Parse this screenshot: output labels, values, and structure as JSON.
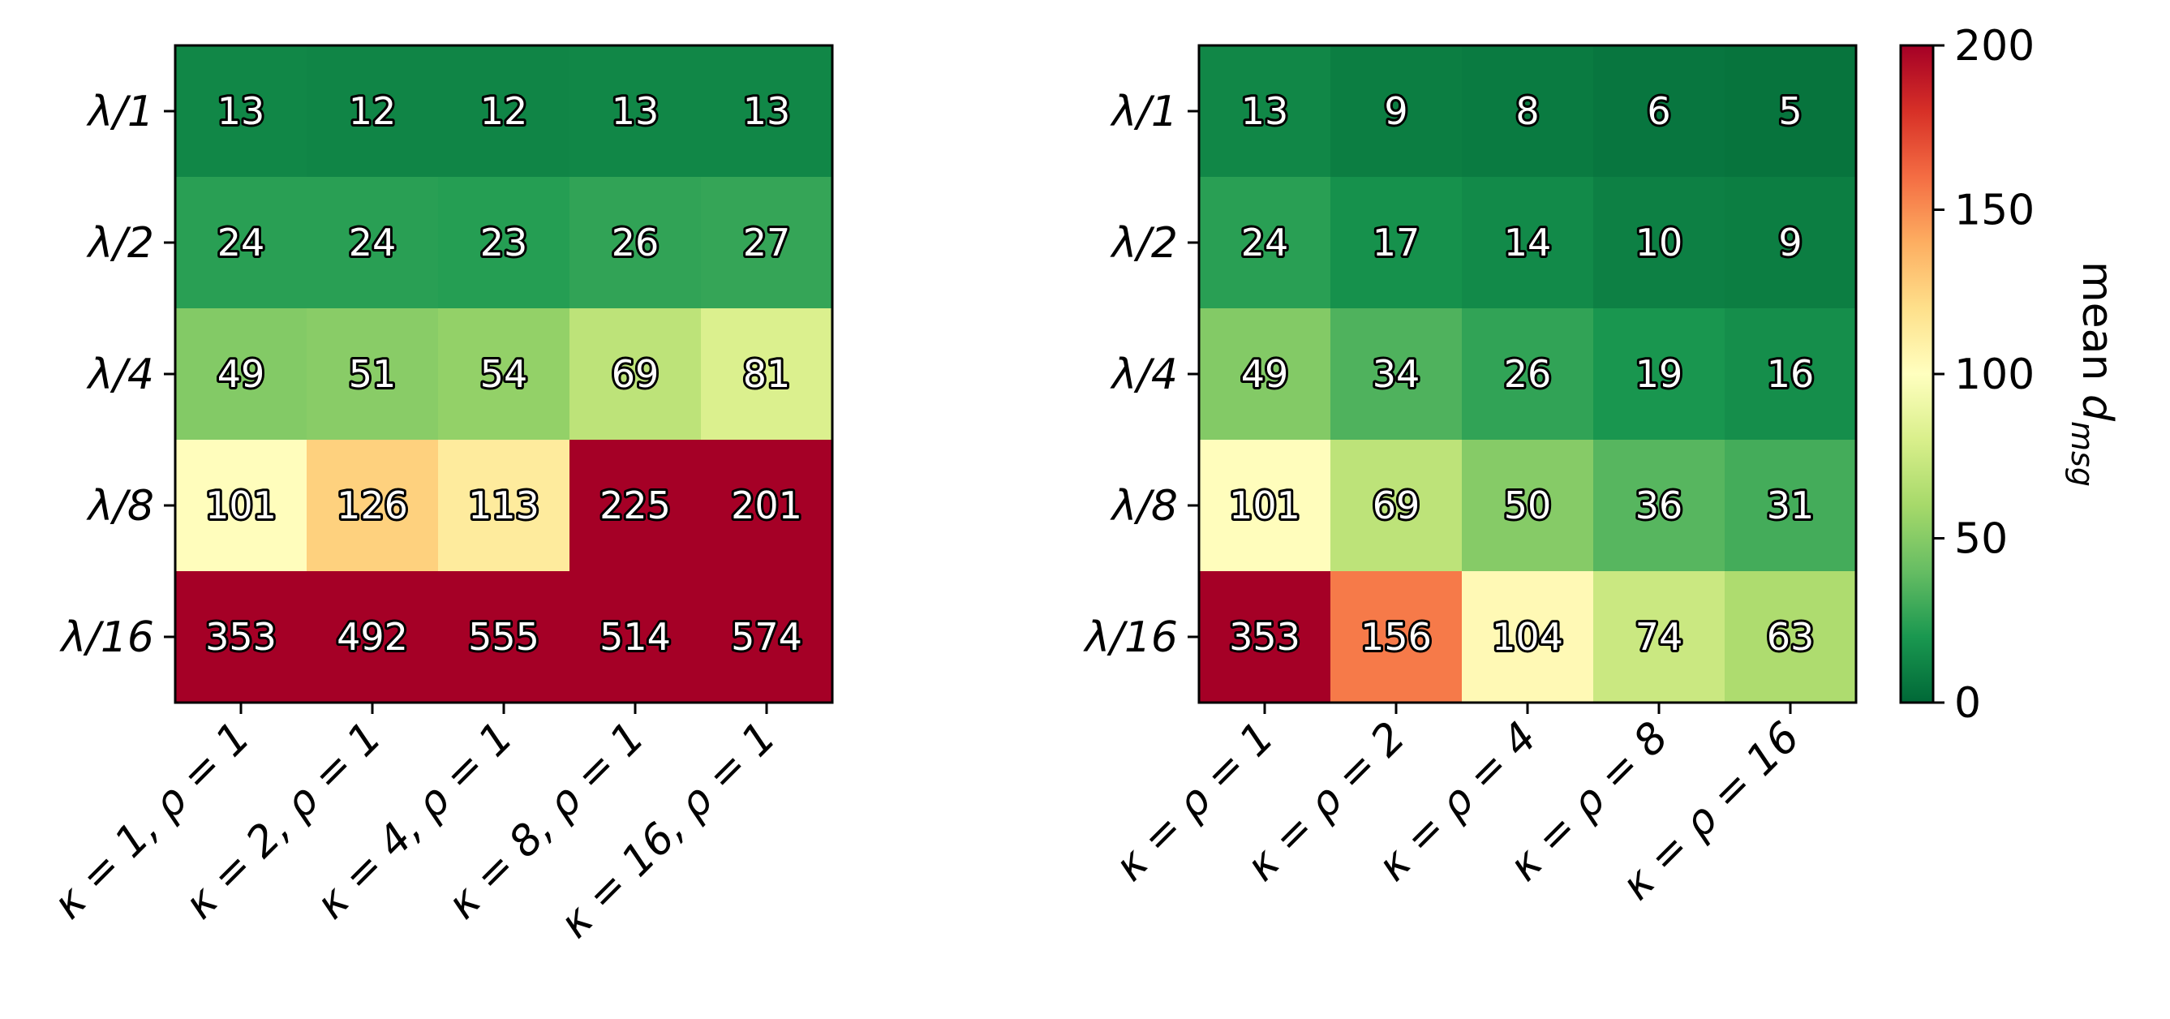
{
  "chart_data": [
    {
      "type": "heatmap",
      "title": "",
      "xlabel": "",
      "ylabel": "",
      "rows": [
        "λ/1",
        "λ/2",
        "λ/4",
        "λ/8",
        "λ/16"
      ],
      "cols": [
        "κ = 1, ρ = 1",
        "κ = 2, ρ = 1",
        "κ = 4, ρ = 1",
        "κ = 8, ρ = 1",
        "κ = 16, ρ = 1"
      ],
      "values": [
        [
          13,
          12,
          12,
          13,
          13
        ],
        [
          24,
          24,
          23,
          26,
          27
        ],
        [
          49,
          51,
          54,
          69,
          81
        ],
        [
          101,
          126,
          113,
          225,
          201
        ],
        [
          353,
          492,
          555,
          514,
          574
        ]
      ],
      "colormap": "RdYlGn_r",
      "vmin": 0,
      "vmax": 200
    },
    {
      "type": "heatmap",
      "title": "",
      "xlabel": "",
      "ylabel": "",
      "rows": [
        "λ/1",
        "λ/2",
        "λ/4",
        "λ/8",
        "λ/16"
      ],
      "cols": [
        "κ = ρ = 1",
        "κ = ρ = 2",
        "κ = ρ = 4",
        "κ = ρ = 8",
        "κ = ρ = 16"
      ],
      "values": [
        [
          13,
          9,
          8,
          6,
          5
        ],
        [
          24,
          17,
          14,
          10,
          9
        ],
        [
          49,
          34,
          26,
          19,
          16
        ],
        [
          101,
          69,
          50,
          36,
          31
        ],
        [
          353,
          156,
          104,
          74,
          63
        ]
      ],
      "colormap": "RdYlGn_r",
      "vmin": 0,
      "vmax": 200
    }
  ],
  "colorbar": {
    "label_main": "mean ",
    "label_sub": "d",
    "label_subscript": "msg",
    "ticks": [
      "0",
      "50",
      "100",
      "150",
      "200"
    ],
    "tick_values": [
      0,
      50,
      100,
      150,
      200
    ],
    "vmin": 0,
    "vmax": 200
  }
}
